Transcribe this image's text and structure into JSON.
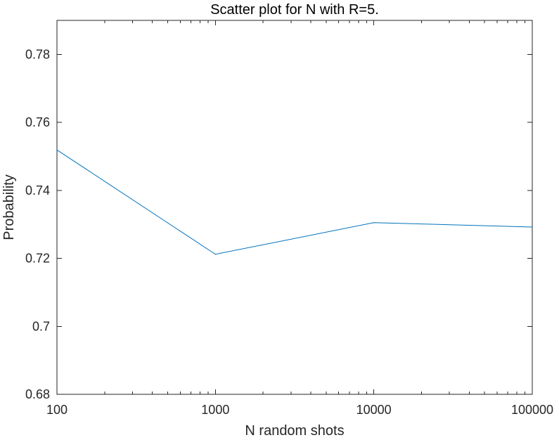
{
  "chart_data": {
    "type": "line",
    "title": "Scatter plot for N with R=5.",
    "xlabel": "N random shots",
    "ylabel": "Probability",
    "x_scale": "log",
    "x": [
      100,
      1000,
      10000,
      100000
    ],
    "series": [
      {
        "values": [
          0.7519,
          0.7212,
          0.7305,
          0.7292
        ]
      }
    ],
    "xlim": [
      100,
      100000
    ],
    "ylim": [
      0.68,
      0.79
    ],
    "x_ticks": [
      100,
      1000,
      10000,
      100000
    ],
    "x_tick_labels": [
      "100",
      "1000",
      "10000",
      "100000"
    ],
    "y_ticks": [
      0.68,
      0.7,
      0.72,
      0.74,
      0.76,
      0.78
    ],
    "y_tick_labels": [
      "0.68",
      "0.7",
      "0.72",
      "0.74",
      "0.76",
      "0.78"
    ],
    "grid": false,
    "colors": {
      "line": "#0072BD",
      "axis": "#262626"
    }
  }
}
